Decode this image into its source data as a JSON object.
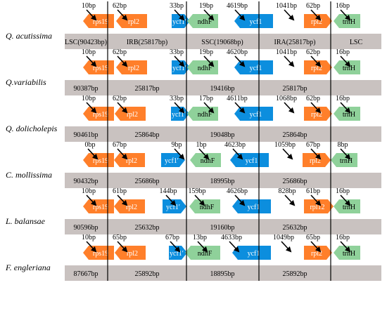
{
  "colors": {
    "gene_orange": "#ff7f2a",
    "gene_blue": "#0c8ede",
    "gene_green": "#8fd19a",
    "bar_gray": "#c9c2c0",
    "line": "#000000"
  },
  "species": [
    {
      "name": "Q. acutissima",
      "segments": [
        "LSC(90423bp)",
        "IRB(25817bp)",
        "SSC(19068bp)",
        "IRA(25817bp)",
        "LSC"
      ],
      "genes": [
        "rps19",
        "rpl2",
        "ycf1",
        "ndhF",
        "ycf1",
        "rpl2",
        "trnH"
      ],
      "distances": [
        "10bp",
        "62bp",
        "33bp",
        "19bp",
        "4619bp",
        "1041bp",
        "62bp",
        "16bp"
      ]
    },
    {
      "name": "Q.variabilis",
      "segments": [
        "90387bp",
        "25817bp",
        "19416bp",
        "25817bp",
        ""
      ],
      "genes": [
        "rps19",
        "rpl2",
        "ycf1",
        "ndhF",
        "ycf1",
        "rpl2",
        "trnH"
      ],
      "distances": [
        "10bp",
        "62bp",
        "33bp",
        "19bp",
        "4620bp",
        "1041bp",
        "62bp",
        "16bp"
      ]
    },
    {
      "name": "Q. dolicholepis",
      "segments": [
        "90461bp",
        "25864bp",
        "19048bp",
        "25864bp",
        ""
      ],
      "genes": [
        "rps19",
        "rpl2",
        "ycf1",
        "ndhF",
        "ycf1",
        "rpl2",
        "trnH"
      ],
      "distances": [
        "10bp",
        "62bp",
        "33bp",
        "17bp",
        "4611bp",
        "1068bp",
        "62bp",
        "16bp"
      ]
    },
    {
      "name": "C. mollissima",
      "segments": [
        "90432bp",
        "25686bp",
        "18995bp",
        "25686bp",
        ""
      ],
      "genes": [
        "rps19",
        "rpl2",
        "ycf1",
        "ndhF",
        "ycf1",
        "rpl2",
        "trnH"
      ],
      "distances": [
        "0bp",
        "67bp",
        "9bp",
        "1bp",
        "4623bp",
        "1059bp",
        "67bp",
        "8bp"
      ]
    },
    {
      "name": "L. balansae",
      "segments": [
        "90596bp",
        "25632bp",
        "19160bp",
        "25632bp",
        ""
      ],
      "genes": [
        "rps19",
        "rpl2",
        "ycf1",
        "ndhF",
        "ycf1",
        "rpl12",
        "trnH"
      ],
      "distances": [
        "10bp",
        "61bp",
        "144bp",
        "159bp",
        "4626bp",
        "828bp",
        "61bp",
        "16bp"
      ]
    },
    {
      "name": "F. engleriana",
      "segments": [
        "87667bp",
        "25892bp",
        "18895bp",
        "25892bp",
        ""
      ],
      "genes": [
        "rps19",
        "rpl2",
        "ycf1",
        "ndhF",
        "ycf1",
        "rpl2",
        "trnH"
      ],
      "distances": [
        "10bp",
        "65bp",
        "67bp",
        "13bp",
        "4633bp",
        "1049bp",
        "65bp",
        "16bp"
      ]
    }
  ]
}
